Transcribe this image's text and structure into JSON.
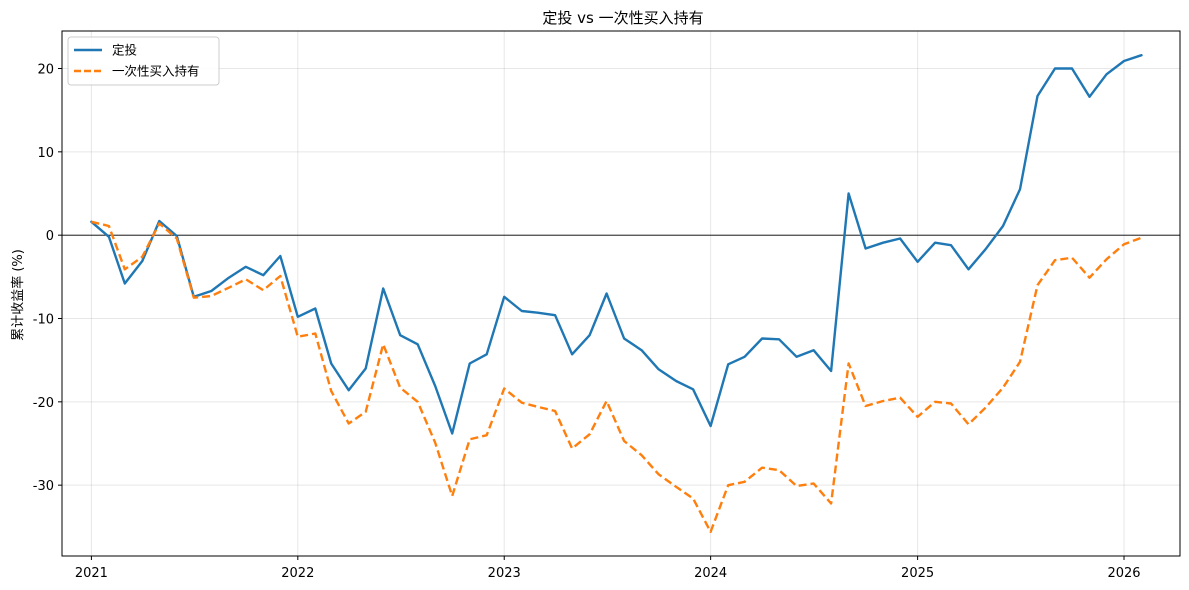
{
  "chart_data": {
    "type": "line",
    "title": "定投 vs 一次性买入持有",
    "xlabel": "",
    "ylabel": "累计收益率 (%)",
    "x_tick_labels": [
      "2021",
      "2022",
      "2023",
      "2024",
      "2025",
      "2026"
    ],
    "y_tick_labels": [
      "-30",
      "-20",
      "-10",
      "0",
      "10",
      "20"
    ],
    "x_range": [
      "2020-11-10",
      "2026-04-10"
    ],
    "ylim": [
      -38.5,
      24.5
    ],
    "grid": true,
    "zero_line": true,
    "legend_position": "upper-left",
    "x": [
      "2021-01",
      "2021-02",
      "2021-03",
      "2021-04",
      "2021-05",
      "2021-06",
      "2021-07",
      "2021-08",
      "2021-09",
      "2021-10",
      "2021-11",
      "2021-12",
      "2022-01",
      "2022-02",
      "2022-03",
      "2022-04",
      "2022-05",
      "2022-06",
      "2022-07",
      "2022-08",
      "2022-09",
      "2022-10",
      "2022-11",
      "2022-12",
      "2023-01",
      "2023-02",
      "2023-03",
      "2023-04",
      "2023-05",
      "2023-06",
      "2023-07",
      "2023-08",
      "2023-09",
      "2023-10",
      "2023-11",
      "2023-12",
      "2024-01",
      "2024-02",
      "2024-03",
      "2024-04",
      "2024-05",
      "2024-06",
      "2024-07",
      "2024-08",
      "2024-09",
      "2024-10",
      "2024-11",
      "2024-12",
      "2025-01",
      "2025-02",
      "2025-03",
      "2025-04",
      "2025-05",
      "2025-06",
      "2025-07",
      "2025-08",
      "2025-09",
      "2025-10",
      "2025-11",
      "2025-12",
      "2026-01",
      "2026-02"
    ],
    "series": [
      {
        "name": "定投",
        "color": "#1f77b4",
        "style": "solid",
        "values": [
          1.6,
          -0.2,
          -5.8,
          -3.1,
          1.7,
          -0.1,
          -7.4,
          -6.7,
          -5.1,
          -3.8,
          -4.8,
          -2.5,
          -9.8,
          -8.8,
          -15.4,
          -18.6,
          -16.0,
          -6.4,
          -12.0,
          -13.1,
          -18.1,
          -23.8,
          -15.4,
          -14.3,
          -7.4,
          -9.1,
          -9.3,
          -9.6,
          -14.3,
          -12.0,
          -7.0,
          -12.4,
          -13.8,
          -16.1,
          -17.5,
          -18.5,
          -22.9,
          -15.5,
          -14.6,
          -12.4,
          -12.5,
          -14.6,
          -13.8,
          -16.3,
          5.0,
          -1.6,
          -0.9,
          -0.4,
          -3.2,
          -0.9,
          -1.2,
          -4.1,
          -1.7,
          1.1,
          5.5,
          16.7,
          20.0,
          20.0,
          16.6,
          19.3,
          20.9,
          21.6
        ]
      },
      {
        "name": "一次性买入持有",
        "color": "#ff7f0e",
        "style": "dashed",
        "values": [
          1.6,
          1.1,
          -4.1,
          -2.6,
          1.4,
          -0.4,
          -7.5,
          -7.3,
          -6.3,
          -5.3,
          -6.6,
          -4.9,
          -12.2,
          -11.8,
          -18.7,
          -22.6,
          -21.2,
          -13.1,
          -18.3,
          -20.0,
          -24.9,
          -31.3,
          -24.5,
          -24.0,
          -18.4,
          -20.1,
          -20.6,
          -21.1,
          -25.6,
          -23.9,
          -19.9,
          -24.7,
          -26.4,
          -28.7,
          -30.2,
          -31.6,
          -35.6,
          -30.0,
          -29.6,
          -27.9,
          -28.2,
          -30.1,
          -29.8,
          -32.2,
          -15.4,
          -20.5,
          -19.9,
          -19.5,
          -21.8,
          -20.0,
          -20.2,
          -22.7,
          -20.7,
          -18.3,
          -15.2,
          -6.0,
          -3.0,
          -2.7,
          -5.1,
          -2.9,
          -1.1,
          -0.3
        ]
      }
    ]
  }
}
